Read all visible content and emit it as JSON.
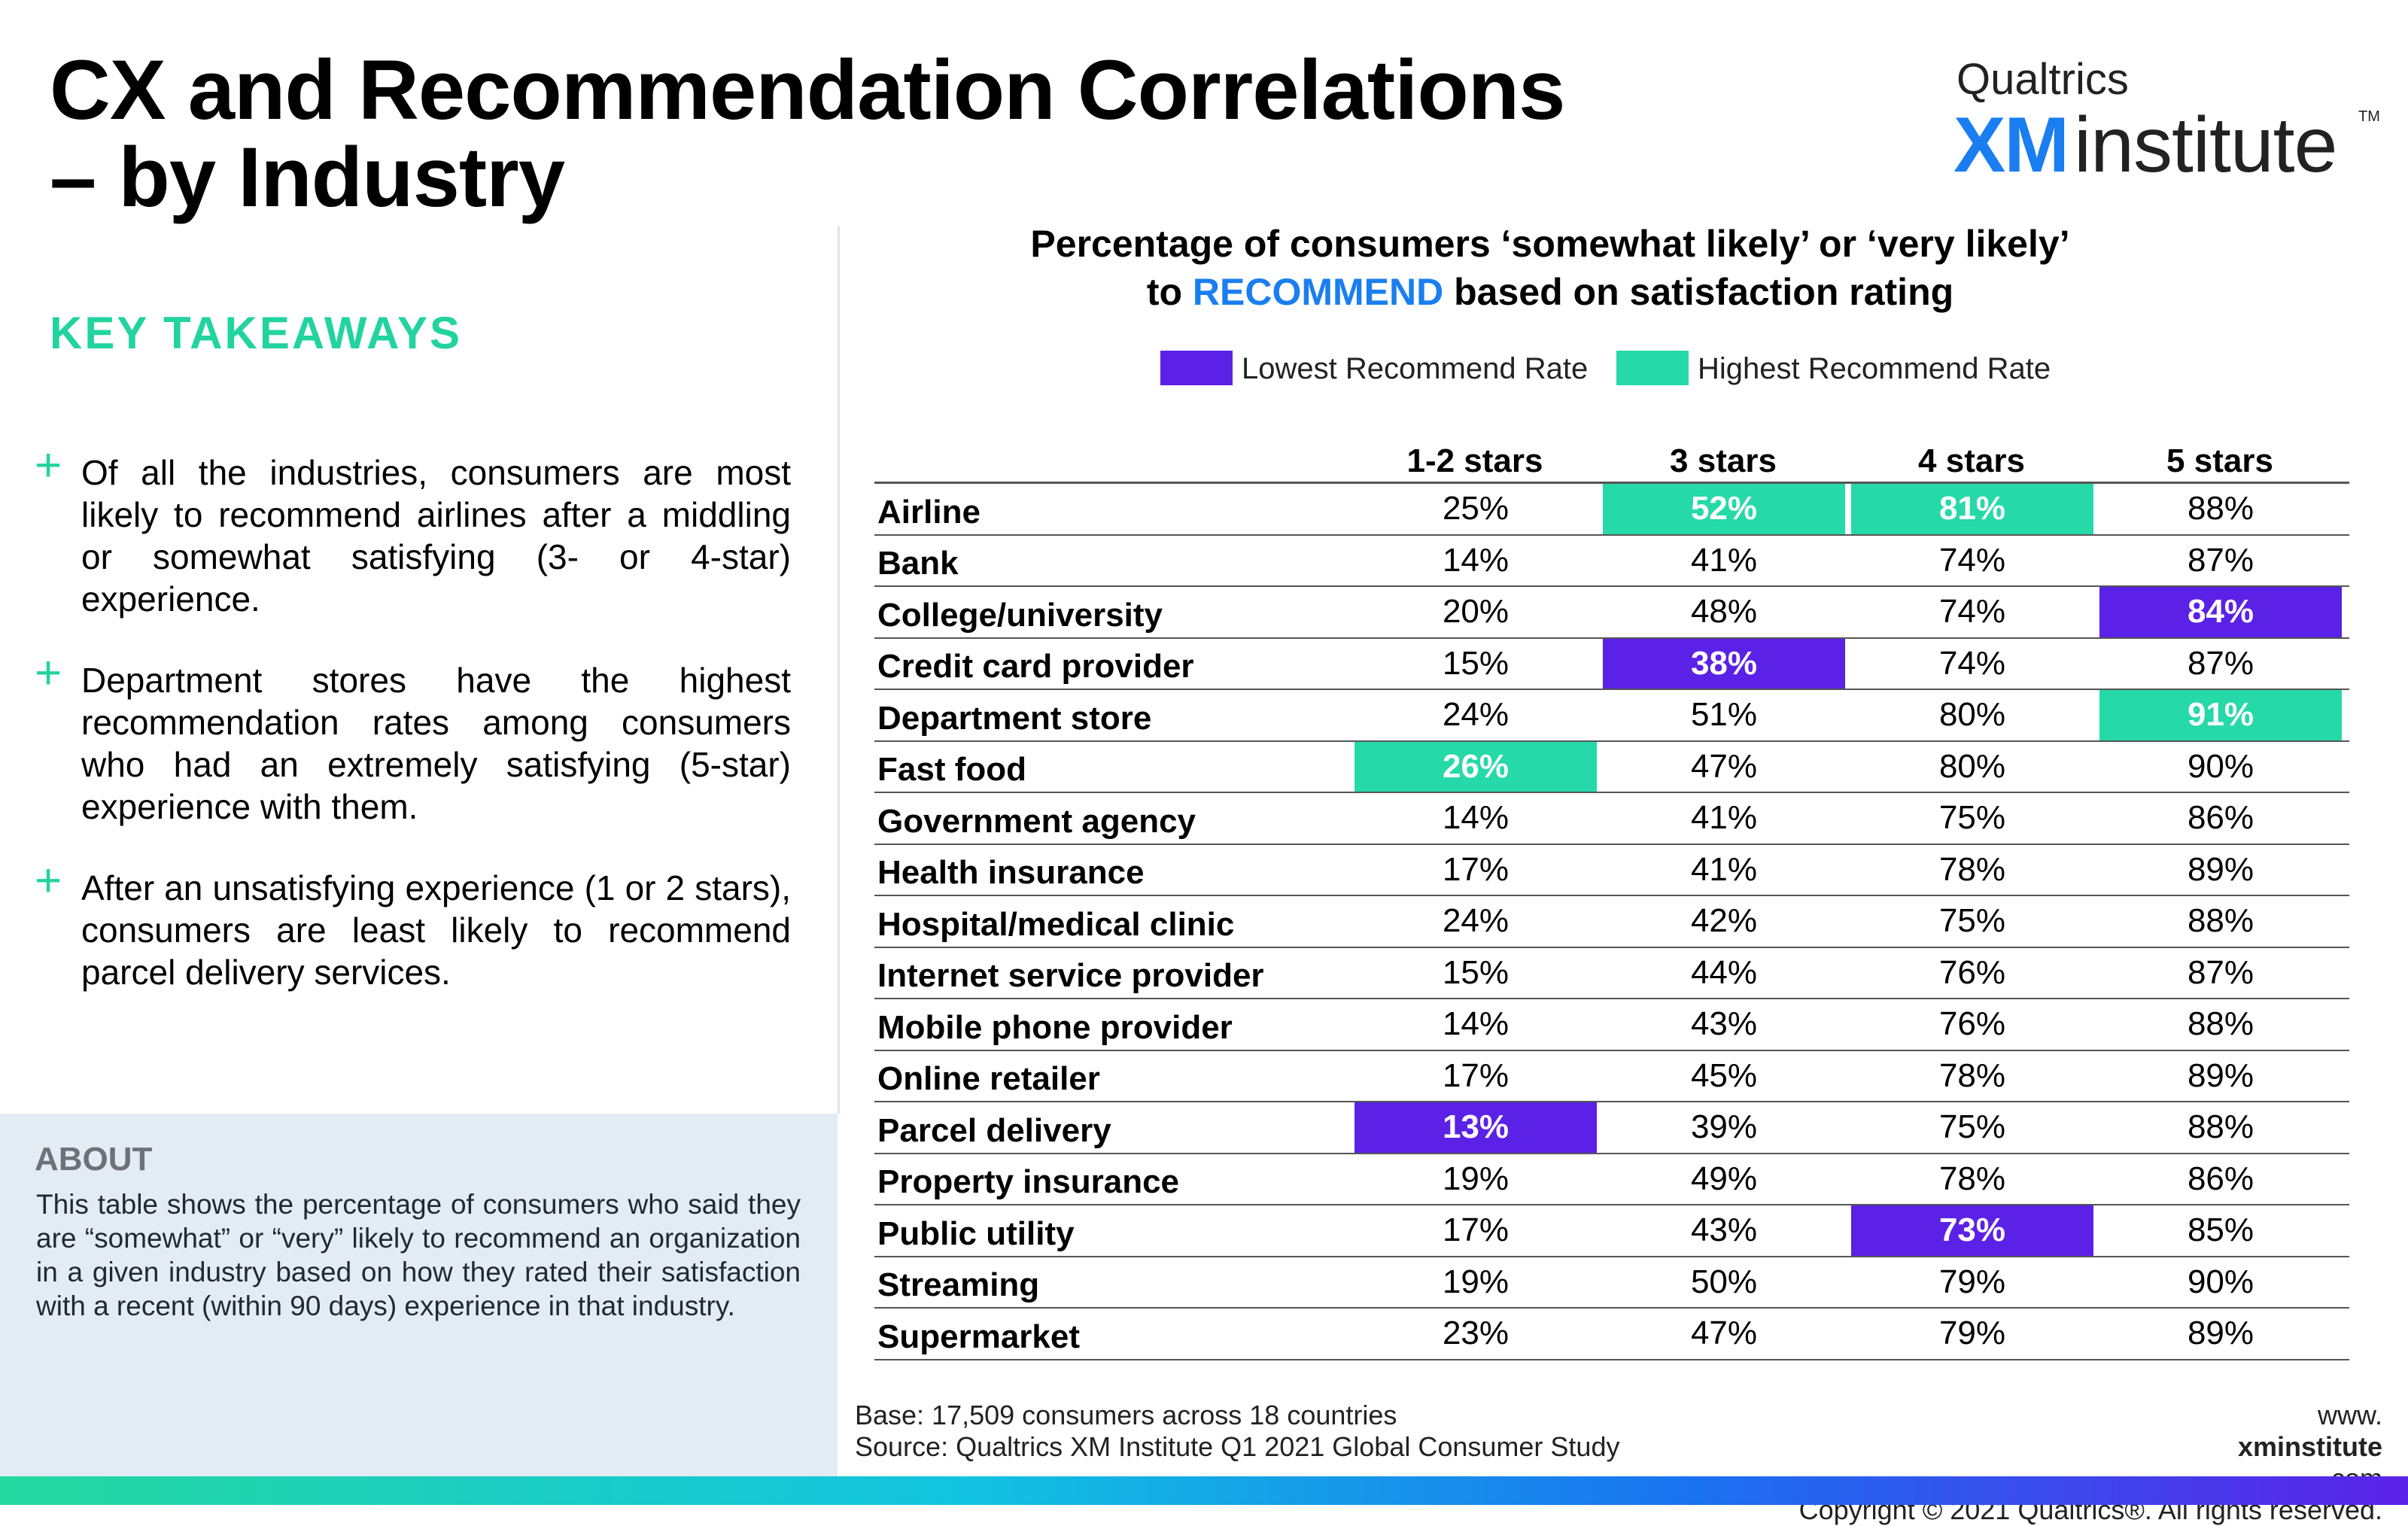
{
  "title": {
    "line1": "CX and Recommendation Correlations",
    "line2": "– by Industry"
  },
  "logo": {
    "top": "Qualtrics",
    "xm": "XM",
    "institute": "institute",
    "tm": "TM"
  },
  "key_takeaways": {
    "heading": "KEY TAKEAWAYS",
    "items": [
      "Of all the industries, consumers are most likely to recommend airlines after a middling or somewhat satisfying (3- or 4-star) experience.",
      "Department stores have the highest recommendation rates among consumers who had an extremely satisfying (5-star) experience with them.",
      "After an unsatisfying experience (1 or 2 stars), consumers are least likely to recommend parcel delivery services."
    ]
  },
  "about": {
    "heading": "ABOUT",
    "text": "This table shows the percentage of consumers who said they are “somewhat” or “very” likely to recommend an organization in a given industry based on how they rated their satisfaction with a recent (within 90 days) experience in that industry."
  },
  "chart": {
    "title_line1": "Percentage of consumers ‘somewhat likely’ or ‘very likely’",
    "title_line2_pre": "to ",
    "title_line2_highlight": "RECOMMEND",
    "title_line2_post": " based on satisfaction rating",
    "legend": {
      "low_label": "Lowest Recommend Rate",
      "high_label": "Highest Recommend Rate",
      "low_color": "#5b21e6",
      "high_color": "#26d9a8"
    }
  },
  "chart_data": {
    "type": "table",
    "columns": [
      "1-2 stars",
      "3 stars",
      "4 stars",
      "5 stars"
    ],
    "rows": [
      {
        "industry": "Airline",
        "values": [
          "25%",
          "52%",
          "81%",
          "88%"
        ],
        "highlight": [
          "",
          "high",
          "high",
          ""
        ]
      },
      {
        "industry": "Bank",
        "values": [
          "14%",
          "41%",
          "74%",
          "87%"
        ],
        "highlight": [
          "",
          "",
          "",
          ""
        ]
      },
      {
        "industry": "College/university",
        "values": [
          "20%",
          "48%",
          "74%",
          "84%"
        ],
        "highlight": [
          "",
          "",
          "",
          "low"
        ]
      },
      {
        "industry": "Credit card provider",
        "values": [
          "15%",
          "38%",
          "74%",
          "87%"
        ],
        "highlight": [
          "",
          "low",
          "",
          ""
        ]
      },
      {
        "industry": "Department store",
        "values": [
          "24%",
          "51%",
          "80%",
          "91%"
        ],
        "highlight": [
          "",
          "",
          "",
          "high"
        ]
      },
      {
        "industry": "Fast food",
        "values": [
          "26%",
          "47%",
          "80%",
          "90%"
        ],
        "highlight": [
          "high",
          "",
          "",
          ""
        ]
      },
      {
        "industry": "Government agency",
        "values": [
          "14%",
          "41%",
          "75%",
          "86%"
        ],
        "highlight": [
          "",
          "",
          "",
          ""
        ]
      },
      {
        "industry": "Health insurance",
        "values": [
          "17%",
          "41%",
          "78%",
          "89%"
        ],
        "highlight": [
          "",
          "",
          "",
          ""
        ]
      },
      {
        "industry": "Hospital/medical clinic",
        "values": [
          "24%",
          "42%",
          "75%",
          "88%"
        ],
        "highlight": [
          "",
          "",
          "",
          ""
        ]
      },
      {
        "industry": "Internet service provider",
        "values": [
          "15%",
          "44%",
          "76%",
          "87%"
        ],
        "highlight": [
          "",
          "",
          "",
          ""
        ]
      },
      {
        "industry": "Mobile phone provider",
        "values": [
          "14%",
          "43%",
          "76%",
          "88%"
        ],
        "highlight": [
          "",
          "",
          "",
          ""
        ]
      },
      {
        "industry": "Online retailer",
        "values": [
          "17%",
          "45%",
          "78%",
          "89%"
        ],
        "highlight": [
          "",
          "",
          "",
          ""
        ]
      },
      {
        "industry": "Parcel delivery",
        "values": [
          "13%",
          "39%",
          "75%",
          "88%"
        ],
        "highlight": [
          "low",
          "",
          "",
          ""
        ]
      },
      {
        "industry": "Property insurance",
        "values": [
          "19%",
          "49%",
          "78%",
          "86%"
        ],
        "highlight": [
          "",
          "",
          "",
          ""
        ]
      },
      {
        "industry": "Public utility",
        "values": [
          "17%",
          "43%",
          "73%",
          "85%"
        ],
        "highlight": [
          "",
          "",
          "low",
          ""
        ]
      },
      {
        "industry": "Streaming",
        "values": [
          "19%",
          "50%",
          "79%",
          "90%"
        ],
        "highlight": [
          "",
          "",
          "",
          ""
        ]
      },
      {
        "industry": "Supermarket",
        "values": [
          "23%",
          "47%",
          "79%",
          "89%"
        ],
        "highlight": [
          "",
          "",
          "",
          ""
        ]
      }
    ]
  },
  "footer": {
    "base": "Base: 17,509 consumers across 18 countries",
    "source": "Source: Qualtrics XM Institute Q1 2021 Global Consumer Study",
    "url_pre": "www.",
    "url_bold": "xminstitute",
    "url_post": ".com",
    "copyright": "Copyright © 2021 Qualtrics®. All rights reserved."
  }
}
